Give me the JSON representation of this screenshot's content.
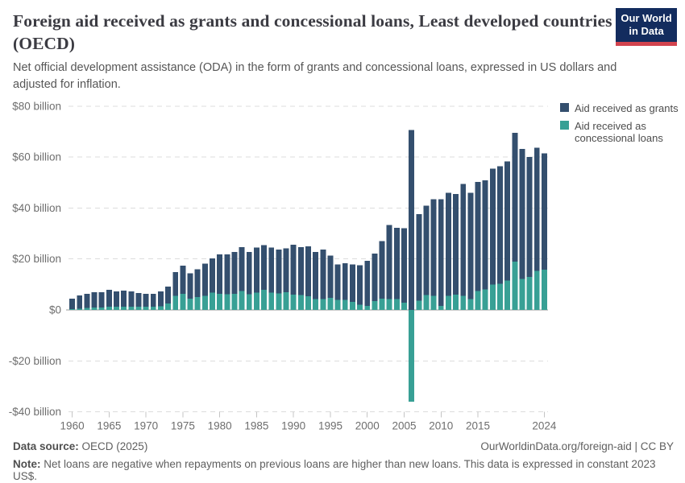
{
  "header": {
    "title": "Foreign aid received as grants and concessional loans, Least developed countries (OECD)",
    "subtitle": "Net official development assistance (ODA) in the form of grants and concessional loans, expressed in US dollars and adjusted for inflation.",
    "logo": {
      "line1": "Our World",
      "line2": "in Data"
    }
  },
  "legend": [
    {
      "label": "Aid received as grants",
      "color": "#344f6e"
    },
    {
      "label": "Aid received as concessional loans",
      "color": "#38a095"
    }
  ],
  "chart_data": {
    "type": "bar",
    "stacked": true,
    "unit": "US$ billion",
    "categories": [
      1960,
      1961,
      1962,
      1963,
      1964,
      1965,
      1966,
      1967,
      1968,
      1969,
      1970,
      1971,
      1972,
      1973,
      1974,
      1975,
      1976,
      1977,
      1978,
      1979,
      1980,
      1981,
      1982,
      1983,
      1984,
      1985,
      1986,
      1987,
      1988,
      1989,
      1990,
      1991,
      1992,
      1993,
      1994,
      1995,
      1996,
      1997,
      1998,
      1999,
      2000,
      2001,
      2002,
      2003,
      2004,
      2005,
      2006,
      2007,
      2008,
      2009,
      2010,
      2011,
      2012,
      2013,
      2014,
      2015,
      2016,
      2017,
      2018,
      2019,
      2020,
      2021,
      2022,
      2023,
      2024
    ],
    "series": [
      {
        "name": "Aid received as grants",
        "color": "#344f6e",
        "values": [
          4.2,
          5.2,
          5.5,
          6.0,
          6.0,
          6.7,
          6.1,
          6.4,
          6.1,
          5.4,
          5.1,
          5.0,
          5.8,
          6.7,
          9.4,
          11.1,
          10.0,
          10.9,
          12.7,
          13.4,
          15.5,
          15.7,
          16.5,
          17.3,
          16.7,
          17.7,
          17.6,
          17.7,
          17.2,
          17.3,
          19.6,
          18.8,
          19.6,
          18.5,
          19.4,
          16.7,
          13.9,
          14.4,
          14.7,
          15.6,
          17.7,
          18.6,
          22.5,
          29.2,
          28.0,
          29.2,
          70.6,
          33.9,
          35.2,
          38.0,
          41.9,
          40.5,
          39.5,
          43.9,
          41.8,
          42.8,
          42.9,
          45.5,
          46.2,
          46.7,
          50.5,
          51.1,
          47.0,
          48.4,
          45.6
        ]
      },
      {
        "name": "Aid received as concessional loans",
        "color": "#38a095",
        "values": [
          0.3,
          0.5,
          0.8,
          1.0,
          1.0,
          1.2,
          1.2,
          1.2,
          1.2,
          1.2,
          1.2,
          1.3,
          1.5,
          2.5,
          5.5,
          6.3,
          4.4,
          5.1,
          5.5,
          6.8,
          6.3,
          6.1,
          6.3,
          7.4,
          6.1,
          6.8,
          7.9,
          6.8,
          6.5,
          6.9,
          6.0,
          5.9,
          5.3,
          4.3,
          4.3,
          4.7,
          4.0,
          4.0,
          3.2,
          2.0,
          1.6,
          3.5,
          4.5,
          4.2,
          4.3,
          2.8,
          -36.1,
          3.7,
          5.8,
          5.5,
          1.6,
          5.5,
          6.0,
          5.6,
          4.2,
          7.4,
          8.0,
          10.0,
          10.2,
          11.6,
          19.0,
          12.1,
          13.0,
          15.3,
          15.8
        ]
      }
    ],
    "ylim": [
      -40,
      80
    ],
    "yticks": [
      {
        "value": 80,
        "label": "$80 billion"
      },
      {
        "value": 60,
        "label": "$60 billion"
      },
      {
        "value": 40,
        "label": "$40 billion"
      },
      {
        "value": 20,
        "label": "$20 billion"
      },
      {
        "value": 0,
        "label": "$0"
      },
      {
        "value": -20,
        "label": "-$20 billion"
      },
      {
        "value": -40,
        "label": "-$40 billion"
      }
    ],
    "xticks": [
      1960,
      1965,
      1970,
      1975,
      1980,
      1985,
      1990,
      1995,
      2000,
      2005,
      2010,
      2015,
      2024
    ],
    "grid": true,
    "legend_position": "top-right"
  },
  "footer": {
    "source_label": "Data source:",
    "source_rest": " OECD (2025)",
    "link": "OurWorldinData.org/foreign-aid | CC BY",
    "note_label": "Note:",
    "note_rest": " Net loans are negative when repayments on previous loans are higher than new loans. This data is expressed in constant 2023 US$."
  }
}
